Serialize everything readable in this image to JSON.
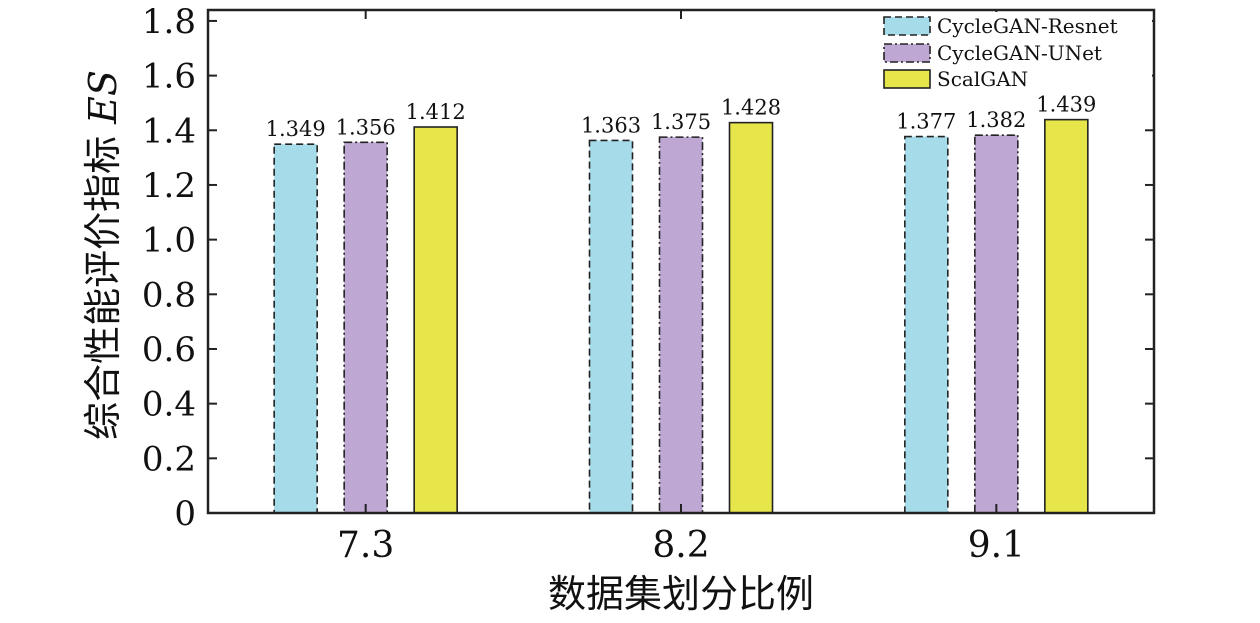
{
  "chart_data": {
    "type": "bar",
    "categories": [
      "7.3",
      "8.2",
      "9.1"
    ],
    "series": [
      {
        "name": "CycleGAN-Resnet",
        "values": [
          1.349,
          1.363,
          1.377
        ],
        "color": "#a6dcea",
        "stroke": "dashed"
      },
      {
        "name": "CycleGAN-UNet",
        "values": [
          1.356,
          1.375,
          1.382
        ],
        "color": "#bfa7d3",
        "stroke": "dashdot"
      },
      {
        "name": "ScalGAN",
        "values": [
          1.412,
          1.428,
          1.439
        ],
        "color": "#e6e64a",
        "stroke": "solid"
      }
    ],
    "value_labels": [
      [
        "1.349",
        "1.363",
        "1.377"
      ],
      [
        "1.356",
        "1.375",
        "1.382"
      ],
      [
        "1.412",
        "1.428",
        "1.439"
      ]
    ],
    "yticks": [
      "0",
      "0.2",
      "0.4",
      "0.6",
      "0.8",
      "1.0",
      "1.2",
      "1.4",
      "1.6",
      "1.8"
    ],
    "ylim": [
      0,
      1.84
    ],
    "xlabel": "数据集划分比例",
    "ylabel": "综合性能评价指标",
    "ylabel_symbol": "ES",
    "legend_position": "top-right",
    "grid": false
  }
}
